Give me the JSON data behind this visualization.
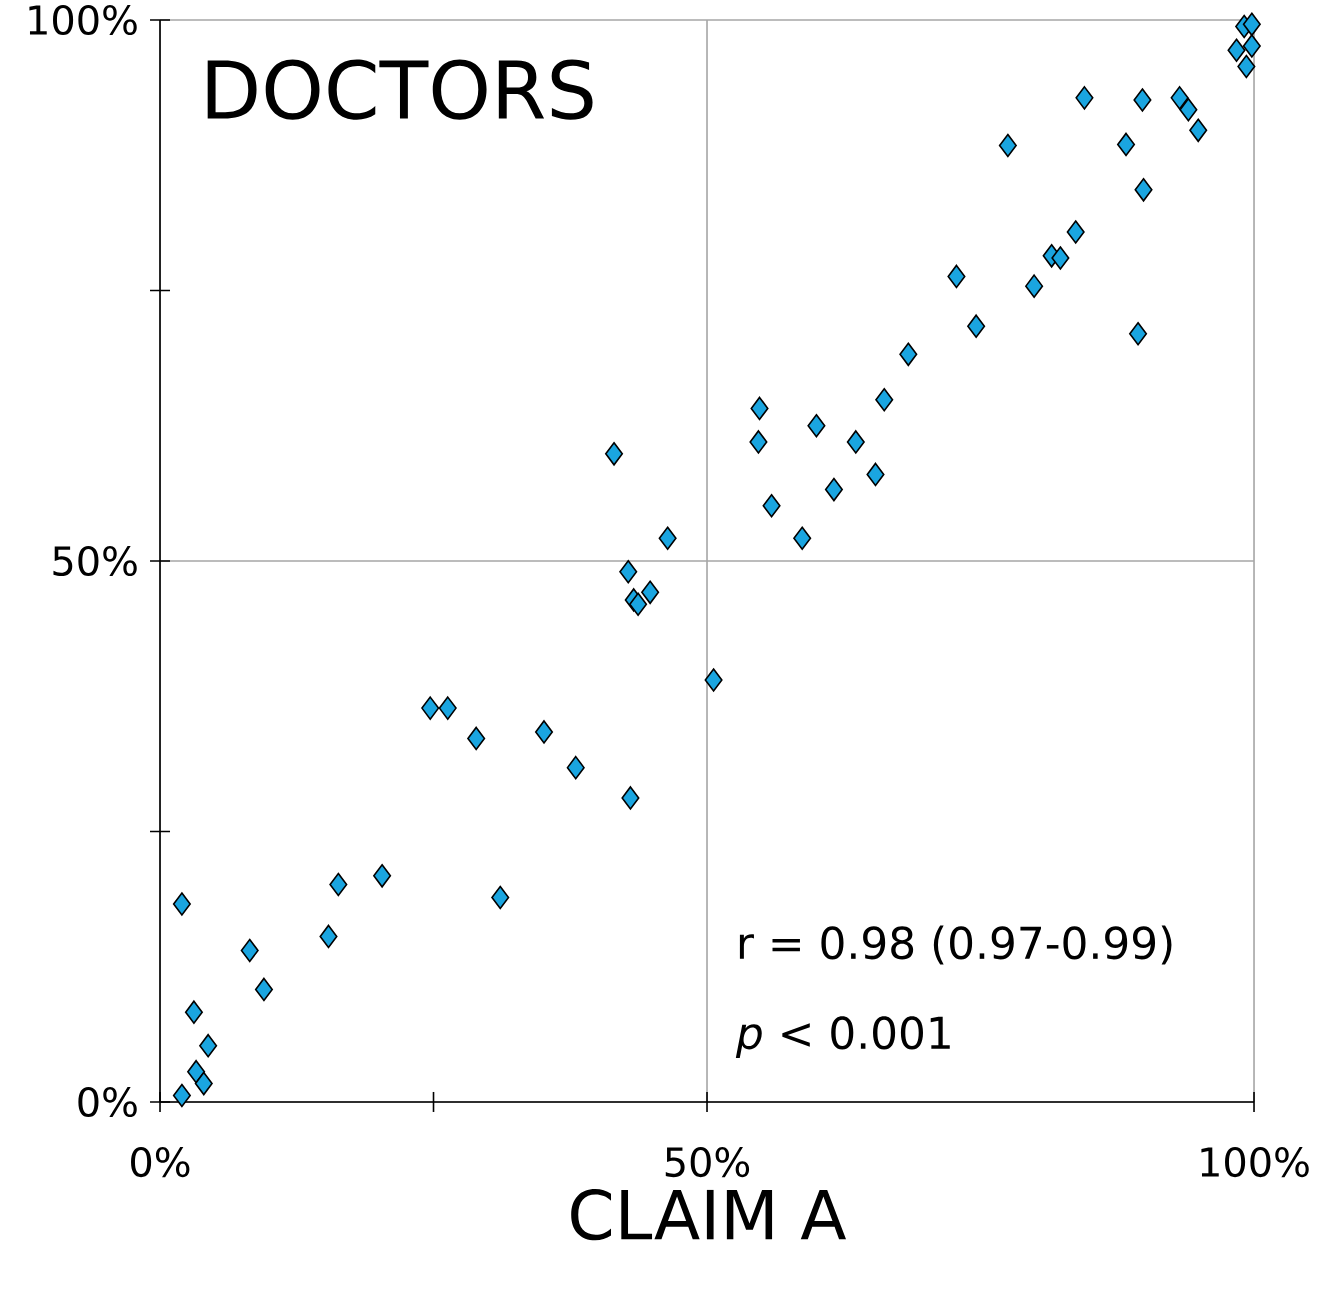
{
  "chart_data": {
    "type": "scatter",
    "title": "DOCTORS",
    "xlabel": "CLAIM A",
    "annotations": [
      "r = 0.98 (0.97-0.99)",
      "*p* < 0.001"
    ],
    "xlim": [
      0,
      100
    ],
    "ylim": [
      0,
      100
    ],
    "xticks": [
      {
        "value": 0,
        "label": "0%"
      },
      {
        "value": 25,
        "label": null
      },
      {
        "value": 50,
        "label": "50%"
      },
      {
        "value": 100,
        "label": "100%"
      }
    ],
    "yticks": [
      {
        "value": 0,
        "label": "0%"
      },
      {
        "value": 25,
        "label": null
      },
      {
        "value": 50,
        "label": "50%"
      },
      {
        "value": 75,
        "label": null
      },
      {
        "value": 100,
        "label": "100%"
      }
    ],
    "grid": true,
    "marker": "diamond",
    "series": [
      {
        "color": "#1aa5e0",
        "x": [
          2.0,
          3.3,
          4.0,
          4.4,
          3.1,
          2.0,
          8.2,
          9.5,
          15.4,
          16.3,
          20.3,
          31.1,
          24.7,
          26.3,
          28.9,
          35.1,
          38.0,
          43.0,
          50.6,
          41.5,
          46.4,
          42.8,
          44.8,
          43.3,
          43.7,
          54.8,
          54.7,
          60.0,
          63.6,
          66.2,
          65.4,
          61.6,
          55.9,
          58.7,
          99.1,
          99.8,
          98.4,
          99.8,
          99.3,
          84.5,
          89.8,
          93.2,
          94.0,
          94.9,
          88.3,
          77.5,
          89.9,
          83.7,
          81.5,
          82.3,
          79.9,
          72.8,
          74.6,
          89.4,
          68.4
        ],
        "values": [
          0.6,
          2.8,
          1.7,
          5.2,
          8.3,
          18.3,
          14.0,
          10.4,
          15.3,
          20.1,
          20.9,
          18.9,
          36.4,
          36.4,
          33.6,
          34.2,
          30.9,
          28.1,
          39.0,
          59.9,
          52.1,
          49.0,
          47.1,
          46.4,
          46.0,
          64.1,
          61.0,
          62.5,
          61.0,
          64.9,
          58.0,
          56.6,
          55.1,
          52.1,
          99.4,
          99.6,
          97.2,
          97.6,
          95.7,
          92.8,
          92.6,
          92.8,
          91.7,
          89.8,
          88.5,
          88.4,
          84.3,
          80.4,
          78.2,
          78.0,
          75.4,
          76.3,
          71.7,
          71.0,
          69.1
        ]
      }
    ]
  }
}
